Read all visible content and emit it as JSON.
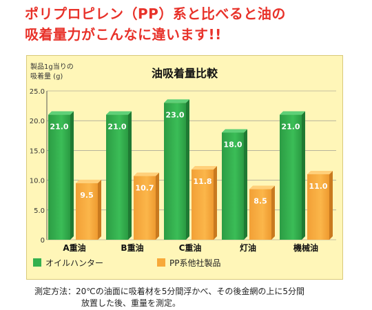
{
  "headline": {
    "line1": "ポリプロピレン（PP）系と比べると油の",
    "line2": "吸着量力がこんなに違います!!"
  },
  "footnote": {
    "line1": "測定方法：20℃の油面に吸着材を5分間浮かべ、その後金網の上に5分間",
    "line2": "放置した後、重量を測定。"
  },
  "colors": {
    "accent": "#e8322a",
    "series1": "#34b04e",
    "series2": "#f7a93a",
    "panel": "#fff6b8"
  },
  "chart_data": {
    "type": "bar",
    "title": "油吸着量比較",
    "ylabel_lines": [
      "製品1g当りの",
      "吸着量 (g)"
    ],
    "categories": [
      "A重油",
      "B重油",
      "C重油",
      "灯油",
      "機械油"
    ],
    "ylim": [
      0,
      25
    ],
    "yticks": [
      "0",
      "5.0",
      "10.0",
      "15.0",
      "20.0",
      "25.0"
    ],
    "grid": true,
    "legend_position": "bottom-left",
    "series": [
      {
        "name": "オイルハンター",
        "values": [
          21.0,
          21.0,
          23.0,
          18.0,
          21.0
        ],
        "labels": [
          "21.0",
          "21.0",
          "23.0",
          "18.0",
          "21.0"
        ]
      },
      {
        "name": "PP系他社製品",
        "values": [
          9.5,
          10.7,
          11.8,
          8.5,
          11.0
        ],
        "labels": [
          "9.5",
          "10.7",
          "11.8",
          "8.5",
          "11.0"
        ]
      }
    ]
  }
}
